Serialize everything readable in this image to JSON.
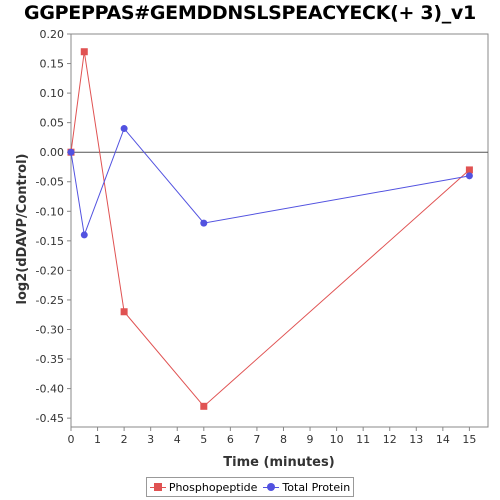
{
  "chart_data": {
    "type": "line",
    "title": "GGPEPPAS#GEMDDNSLSPEACYECK(+ 3)_v1",
    "xlabel": "Time (minutes)",
    "ylabel": "log2(dDAVP/Control)",
    "xlim": [
      0,
      15.7
    ],
    "ylim": [
      -0.465,
      0.2
    ],
    "x_ticks": [
      0,
      1,
      2,
      3,
      4,
      5,
      6,
      7,
      8,
      9,
      10,
      11,
      12,
      13,
      14,
      15
    ],
    "y_ticks": [
      0.2,
      0.15,
      0.1,
      0.05,
      0.0,
      -0.05,
      -0.1,
      -0.15,
      -0.2,
      -0.25,
      -0.3,
      -0.35,
      -0.4,
      -0.45
    ],
    "y_tick_labels": [
      "0.20",
      "0.15",
      "0.10",
      "0.05",
      "0.00",
      "-0.05",
      "-0.10",
      "-0.15",
      "-0.20",
      "-0.25",
      "-0.30",
      "-0.35",
      "-0.40",
      "-0.45"
    ],
    "zero_line": true,
    "grid": false,
    "legend_position": "bottom",
    "series": [
      {
        "name": "Phosphopeptide",
        "color": "#e05252",
        "marker": "square",
        "x": [
          0,
          0.5,
          2,
          5,
          15
        ],
        "y": [
          0.0,
          0.17,
          -0.27,
          -0.43,
          -0.03
        ]
      },
      {
        "name": "Total Protein",
        "color": "#5252e0",
        "marker": "circle",
        "x": [
          0,
          0.5,
          2,
          5,
          15
        ],
        "y": [
          0.0,
          -0.14,
          0.04,
          -0.12,
          -0.04
        ]
      }
    ]
  }
}
